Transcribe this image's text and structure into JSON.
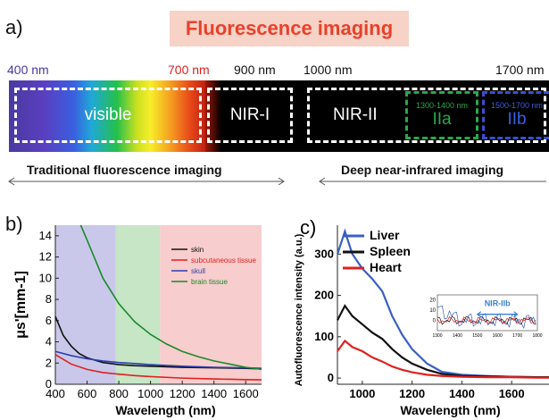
{
  "panel_a": {
    "label": "a)",
    "title": "Fluorescence imaging",
    "wavelength_labels": [
      "400 nm",
      "700 nm",
      "900 nm",
      "1000 nm",
      "1700 nm"
    ],
    "regions": {
      "visible": "visible",
      "nir1": "NIR-I",
      "nir2": "NIR-II",
      "nir2a_range": "1300-1400 nm",
      "nir2a": "IIa",
      "nir2b_range": "1500-1700 nm",
      "nir2b": "IIb"
    },
    "arrows": {
      "left": "Traditional fluorescence imaging",
      "right": "Deep near-infrared imaging"
    },
    "colors": {
      "title_bg": "#f6d2c7",
      "title_text": "#e8412a",
      "nir2a_box": "#2aa84a",
      "nir2b_box": "#3a4fd0"
    }
  },
  "panel_b": {
    "label": "b)",
    "chart_data": {
      "type": "line",
      "xlabel": "Wavelength (nm)",
      "ylabel": "μs'[mm-1]",
      "xlim": [
        400,
        1700
      ],
      "ylim": [
        0,
        15
      ],
      "xticks": [
        400,
        600,
        800,
        1000,
        1200,
        1400,
        1600
      ],
      "yticks": [
        0,
        2,
        4,
        6,
        8,
        10,
        12,
        14
      ],
      "shaded_regions": [
        {
          "x0": 400,
          "x1": 780,
          "color": "#c9c8ea"
        },
        {
          "x0": 780,
          "x1": 1060,
          "color": "#c6e6c6"
        },
        {
          "x0": 1060,
          "x1": 1700,
          "color": "#f7cdcd"
        }
      ],
      "series": [
        {
          "name": "skin",
          "color": "#111111",
          "x": [
            400,
            450,
            500,
            550,
            600,
            700,
            800,
            900,
            1000,
            1200,
            1400,
            1600,
            1700
          ],
          "y": [
            6.4,
            4.6,
            3.6,
            2.9,
            2.5,
            2.05,
            1.85,
            1.75,
            1.7,
            1.6,
            1.55,
            1.5,
            1.45
          ]
        },
        {
          "name": "subcutaneous tissue",
          "color": "#e02020",
          "x": [
            400,
            500,
            600,
            700,
            800,
            900,
            1000,
            1200,
            1400,
            1600,
            1700
          ],
          "y": [
            2.8,
            1.9,
            1.4,
            1.1,
            0.95,
            0.82,
            0.72,
            0.58,
            0.5,
            0.44,
            0.42
          ]
        },
        {
          "name": "skull",
          "color": "#2a3fb0",
          "x": [
            400,
            500,
            600,
            700,
            800,
            900,
            1000,
            1200,
            1400,
            1600,
            1700
          ],
          "y": [
            3.1,
            2.7,
            2.4,
            2.2,
            2.05,
            1.95,
            1.85,
            1.7,
            1.6,
            1.55,
            1.5
          ]
        },
        {
          "name": "brain tissue",
          "color": "#1a8a2a",
          "x": [
            560,
            600,
            700,
            800,
            900,
            1000,
            1100,
            1200,
            1300,
            1400,
            1500,
            1600,
            1700
          ],
          "y": [
            15,
            13.6,
            10.0,
            7.6,
            5.9,
            4.7,
            3.8,
            3.1,
            2.6,
            2.2,
            1.9,
            1.6,
            1.4
          ]
        }
      ],
      "legend_placement": "right"
    }
  },
  "panel_c": {
    "label": "c)",
    "chart_data": {
      "type": "line",
      "xlabel": "Wavelength (nm)",
      "ylabel": "Autofluorescence intensity (a.u.)",
      "xlim": [
        900,
        1750
      ],
      "ylim": [
        -15,
        370
      ],
      "xticks": [
        1000,
        1200,
        1400,
        1600
      ],
      "yticks": [
        0,
        100,
        200,
        300
      ],
      "series": [
        {
          "name": "Liver",
          "color": "#3a5fc0",
          "x": [
            900,
            930,
            960,
            1000,
            1040,
            1080,
            1120,
            1160,
            1200,
            1260,
            1320,
            1400,
            1500,
            1600,
            1700,
            1750
          ],
          "y": [
            300,
            355,
            300,
            265,
            240,
            210,
            150,
            105,
            70,
            35,
            15,
            8,
            5,
            3,
            2,
            2
          ]
        },
        {
          "name": "Spleen",
          "color": "#111111",
          "x": [
            900,
            930,
            960,
            1000,
            1040,
            1080,
            1120,
            1160,
            1200,
            1260,
            1320,
            1400,
            1500,
            1600,
            1700,
            1750
          ],
          "y": [
            140,
            175,
            150,
            130,
            110,
            95,
            70,
            50,
            35,
            20,
            10,
            5,
            4,
            3,
            2,
            2
          ]
        },
        {
          "name": "Heart",
          "color": "#e02020",
          "x": [
            900,
            930,
            960,
            1000,
            1040,
            1080,
            1120,
            1160,
            1200,
            1260,
            1320,
            1400,
            1500,
            1600,
            1700,
            1750
          ],
          "y": [
            65,
            90,
            75,
            65,
            50,
            40,
            28,
            20,
            14,
            8,
            5,
            3,
            2,
            2,
            1,
            1
          ]
        }
      ],
      "legend_placement": "top-left",
      "inset": {
        "annotation": "NIR-IIb",
        "xlim": [
          1300,
          1800
        ],
        "ylim": [
          -10,
          25
        ],
        "xticks": [
          1300,
          1400,
          1500,
          1600,
          1700,
          1800
        ],
        "yticks": [
          0,
          10,
          20
        ],
        "annotation_range": [
          1500,
          1700
        ],
        "annotation_color": "#3a7fd0"
      }
    }
  }
}
